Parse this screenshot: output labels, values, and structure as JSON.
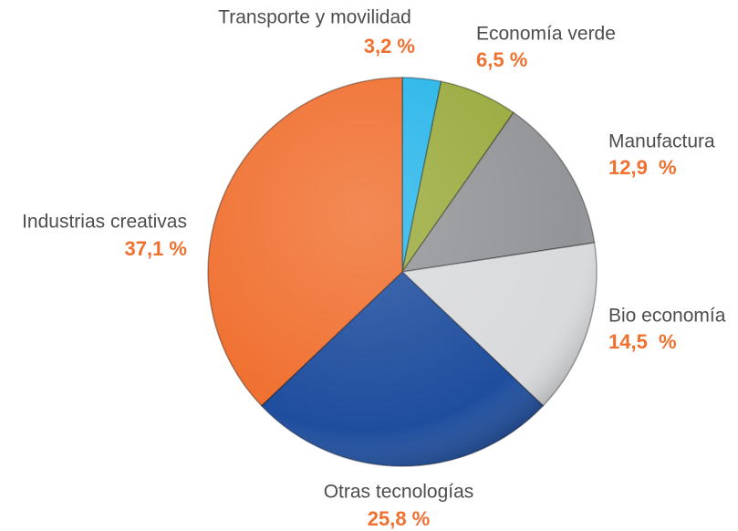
{
  "chart_data": {
    "type": "pie",
    "categories": [
      "Transporte y movilidad",
      "Economía verde",
      "Manufactura",
      "Bio economía",
      "Otras tecnologías",
      "Industrias creativas"
    ],
    "values": [
      3.2,
      6.5,
      12.9,
      14.5,
      25.8,
      37.1
    ],
    "value_labels": [
      "3,2 %",
      "6,5 %",
      "12,9  %",
      "14,5  %",
      "25,8 %",
      "37,1 %"
    ],
    "colors": [
      "#29b6ea",
      "#9bab3e",
      "#929497",
      "#d9dadc",
      "#1f4e9e",
      "#f07030"
    ]
  }
}
